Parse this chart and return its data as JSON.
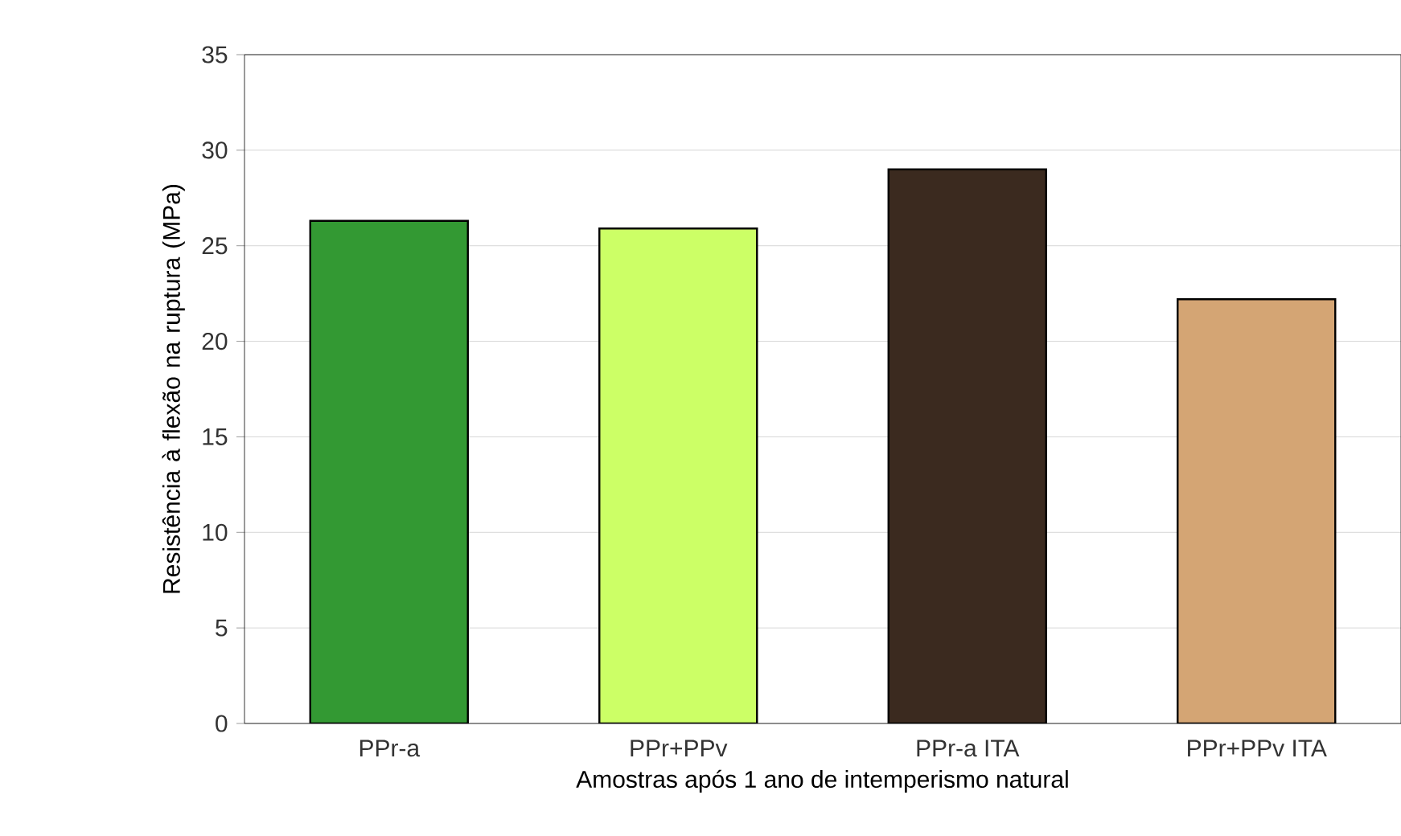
{
  "chart_data": {
    "type": "bar",
    "xlabel": "Amostras após 1 ano de intemperismo natural",
    "ylabel": "Resistência à flexão na ruptura (MPa)",
    "categories": [
      "PPr-a",
      "PPr+PPv",
      "PPr-a ITA",
      "PPr+PPv ITA"
    ],
    "values": [
      26.3,
      25.9,
      29.0,
      22.2
    ],
    "colors": [
      "#339933",
      "#ccff66",
      "#3b2a1f",
      "#d4a574"
    ],
    "ylim": [
      0,
      35
    ],
    "yticks": [
      0,
      5,
      10,
      15,
      20,
      25,
      30,
      35
    ],
    "grid": "y"
  }
}
